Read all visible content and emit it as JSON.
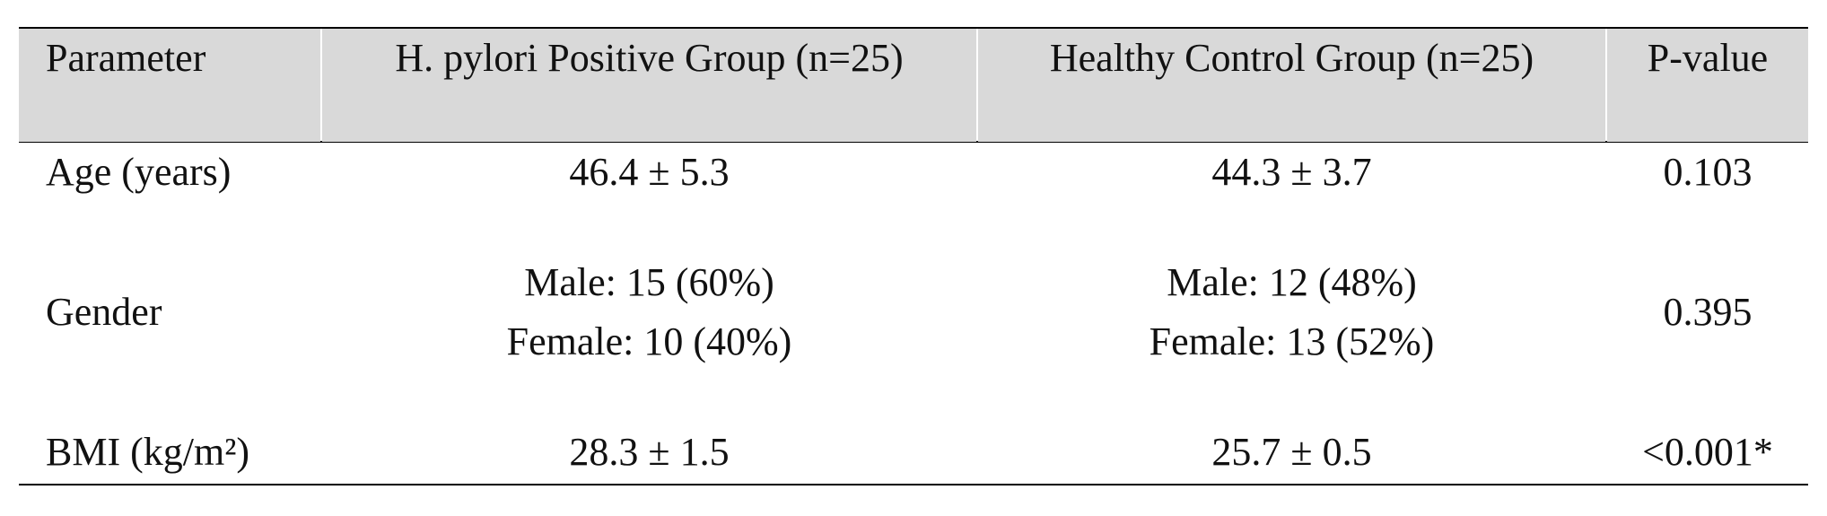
{
  "table": {
    "header": [
      "Parameter",
      "H. pylori Positive Group (n=25)",
      "Healthy Control Group (n=25)",
      "P-value"
    ],
    "rows": [
      [
        [
          "Age (years)"
        ],
        [
          "46.4 ± 5.3"
        ],
        [
          "44.3 ± 3.7"
        ],
        [
          "0.103"
        ]
      ],
      [
        [
          "Gender"
        ],
        [
          "Male: 15 (60%)",
          "Female: 10 (40%)"
        ],
        [
          "Male: 12 (48%)",
          "Female: 13 (52%)"
        ],
        [
          "0.395"
        ]
      ],
      [
        [
          "BMI (kg/m²)"
        ],
        [
          "28.3 ± 1.5"
        ],
        [
          "25.7 ± 0.5"
        ],
        [
          "<0.001*"
        ]
      ]
    ]
  }
}
